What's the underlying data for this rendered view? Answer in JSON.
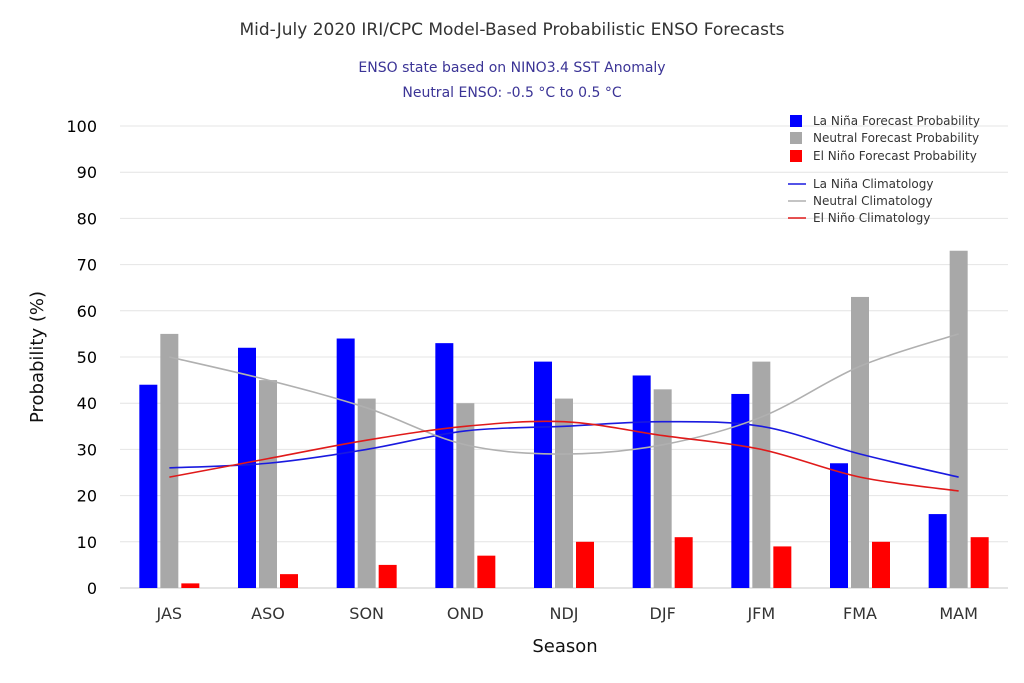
{
  "chart_data": {
    "type": "bar",
    "title": "Mid-July 2020 IRI/CPC Model-Based Probabilistic ENSO Forecasts",
    "subtitle_lines": [
      "ENSO state based on NINO3.4 SST Anomaly",
      "Neutral ENSO: -0.5 °C to 0.5 °C"
    ],
    "xlabel": "Season",
    "ylabel": "Probability (%)",
    "ylim": [
      0,
      100
    ],
    "yticks": [
      0,
      10,
      20,
      30,
      40,
      50,
      60,
      70,
      80,
      90,
      100
    ],
    "grid": true,
    "legend_position": "top-right",
    "categories": [
      "JAS",
      "ASO",
      "SON",
      "OND",
      "NDJ",
      "DJF",
      "JFM",
      "FMA",
      "MAM"
    ],
    "series": [
      {
        "name": "La Niña Forecast Probability",
        "kind": "bar",
        "color": "#0000ff",
        "values": [
          44,
          52,
          54,
          53,
          49,
          46,
          42,
          27,
          16
        ]
      },
      {
        "name": "Neutral Forecast Probability",
        "kind": "bar",
        "color": "#a8a8a8",
        "values": [
          55,
          45,
          41,
          40,
          41,
          43,
          49,
          63,
          73
        ]
      },
      {
        "name": "El Niño Forecast Probability",
        "kind": "bar",
        "color": "#ff0000",
        "values": [
          1,
          3,
          5,
          7,
          10,
          11,
          9,
          10,
          11
        ]
      },
      {
        "name": "La Niña Climatology",
        "kind": "line",
        "color": "#1a1adf",
        "values": [
          26,
          27,
          30,
          34,
          35,
          36,
          35,
          29,
          24
        ]
      },
      {
        "name": "Neutral Climatology",
        "kind": "line",
        "color": "#b0b0b0",
        "values": [
          50,
          45,
          39,
          31,
          29,
          31,
          37,
          48,
          55
        ]
      },
      {
        "name": "El Niño Climatology",
        "kind": "line",
        "color": "#e01a1a",
        "values": [
          24,
          28,
          32,
          35,
          36,
          33,
          30,
          24,
          21
        ]
      }
    ]
  }
}
